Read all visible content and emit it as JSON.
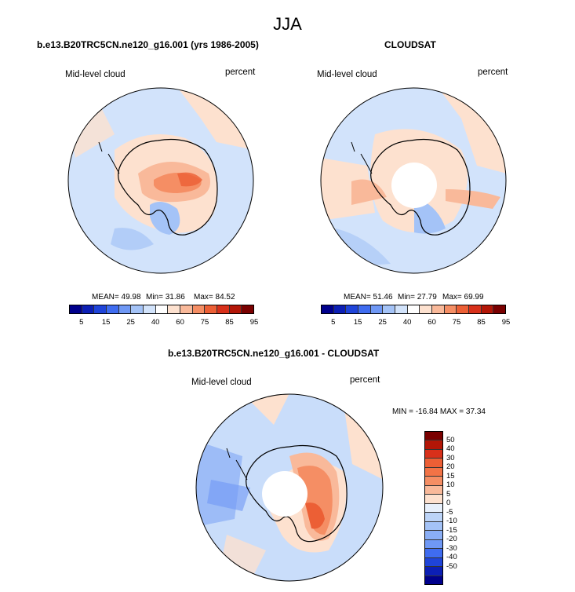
{
  "title": "JJA",
  "panels": {
    "model": {
      "title": "b.e13.B20TRC5CN.ne120_g16.001 (yrs 1986-2005)",
      "left_label": "Mid-level cloud",
      "right_label": "percent",
      "mean_text": "MEAN= 49.98",
      "min_text": "Min= 31.86",
      "max_text": "Max= 84.52"
    },
    "obs": {
      "title": "CLOUDSAT",
      "left_label": "Mid-level cloud",
      "right_label": "percent",
      "mean_text": "MEAN= 51.46",
      "min_text": "Min= 27.79",
      "max_text": "Max= 69.99"
    },
    "diff": {
      "title": "b.e13.B20TRC5CN.ne120_g16.001 - CLOUDSAT",
      "left_label": "Mid-level cloud",
      "right_label": "percent",
      "minmax_text": "MIN = -16.84 MAX =  37.34"
    }
  },
  "colorbar_abs": {
    "ticks": [
      "5",
      "15",
      "25",
      "40",
      "60",
      "75",
      "85",
      "95"
    ],
    "colors": [
      "#00008c",
      "#0c1fb5",
      "#1f44d9",
      "#3f6cf0",
      "#6f98f5",
      "#a4c3f7",
      "#d2e3fb",
      "#ffffff",
      "#fde1cf",
      "#f9b99a",
      "#f58e64",
      "#ec5f35",
      "#d8301a",
      "#b31607",
      "#7a0000"
    ]
  },
  "colorbar_diff": {
    "ticks": [
      "50",
      "40",
      "30",
      "20",
      "15",
      "10",
      "5",
      "0",
      "-5",
      "-10",
      "-15",
      "-20",
      "-30",
      "-40",
      "-50"
    ],
    "colors": [
      "#7a0000",
      "#b31607",
      "#d8301a",
      "#ec5f35",
      "#f27346",
      "#f58e64",
      "#f9b99a",
      "#fde1cf",
      "#e7f0fc",
      "#bcd4f8",
      "#a4c3f7",
      "#8aaef5",
      "#6f98f5",
      "#3f6cf0",
      "#1f44d9",
      "#0c1fb5",
      "#00008c"
    ]
  },
  "map_colors": {
    "ocean_pale_blue": "#d2e3fb",
    "light_peach": "#fde1cf",
    "peach": "#f9b99a",
    "orange": "#f58e64",
    "red_orange": "#ec5f35",
    "light_blue": "#a4c3f7",
    "mid_blue": "#8aaef5"
  }
}
